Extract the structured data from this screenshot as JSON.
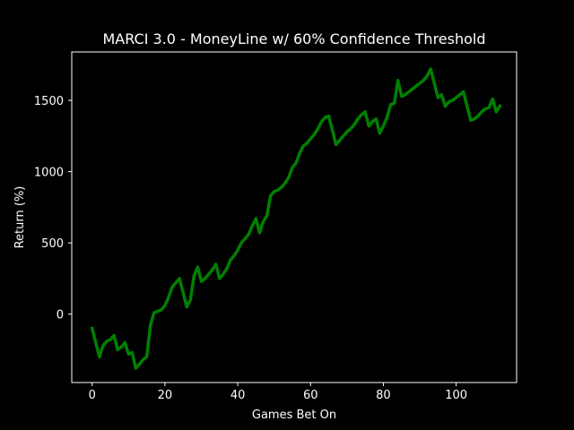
{
  "chart_data": {
    "type": "line",
    "title": "MARCI 3.0 - MoneyLine w/ 60% Confidence Threshold",
    "xlabel": "Games Bet On",
    "ylabel": "Return (%)",
    "xlim": [
      -5.6,
      116.6
    ],
    "ylim": [
      -480,
      1840
    ],
    "xticks": [
      0,
      20,
      40,
      60,
      80,
      100
    ],
    "yticks": [
      0,
      500,
      1000,
      1500
    ],
    "grid": false,
    "legend": "none",
    "background": "#000000",
    "axis_color": "#ffffff",
    "series": [
      {
        "color": "#008000",
        "x": [
          0,
          1,
          2,
          3,
          4,
          5,
          6,
          7,
          8,
          9,
          10,
          11,
          12,
          13,
          14,
          15,
          16,
          17,
          18,
          19,
          20,
          21,
          22,
          23,
          24,
          25,
          26,
          27,
          28,
          29,
          30,
          31,
          32,
          33,
          34,
          35,
          36,
          37,
          38,
          39,
          40,
          41,
          42,
          43,
          44,
          45,
          46,
          47,
          48,
          49,
          50,
          51,
          52,
          53,
          54,
          55,
          56,
          57,
          58,
          59,
          60,
          61,
          62,
          63,
          64,
          65,
          66,
          67,
          68,
          69,
          70,
          71,
          72,
          73,
          74,
          75,
          76,
          77,
          78,
          79,
          80,
          81,
          82,
          83,
          84,
          85,
          86,
          87,
          88,
          89,
          90,
          91,
          92,
          93,
          94,
          95,
          96,
          97,
          98,
          99,
          100,
          101,
          102,
          103,
          104,
          105,
          106,
          107,
          108,
          109,
          110,
          111,
          112
        ],
        "y": [
          -100,
          -200,
          -300,
          -220,
          -190,
          -180,
          -150,
          -250,
          -230,
          -200,
          -280,
          -270,
          -380,
          -350,
          -320,
          -300,
          -80,
          10,
          20,
          30,
          60,
          120,
          190,
          220,
          250,
          150,
          50,
          100,
          270,
          330,
          230,
          250,
          280,
          310,
          350,
          250,
          280,
          320,
          380,
          410,
          450,
          500,
          530,
          560,
          620,
          670,
          570,
          650,
          690,
          830,
          860,
          870,
          890,
          920,
          960,
          1030,
          1060,
          1130,
          1180,
          1200,
          1230,
          1260,
          1300,
          1350,
          1380,
          1390,
          1290,
          1190,
          1220,
          1250,
          1280,
          1300,
          1330,
          1370,
          1400,
          1420,
          1320,
          1350,
          1370,
          1270,
          1320,
          1380,
          1470,
          1480,
          1640,
          1530,
          1540,
          1560,
          1580,
          1600,
          1620,
          1640,
          1670,
          1720,
          1620,
          1520,
          1540,
          1460,
          1490,
          1500,
          1520,
          1540,
          1560,
          1460,
          1360,
          1370,
          1390,
          1420,
          1440,
          1450,
          1510,
          1420,
          1460
        ]
      }
    ]
  }
}
